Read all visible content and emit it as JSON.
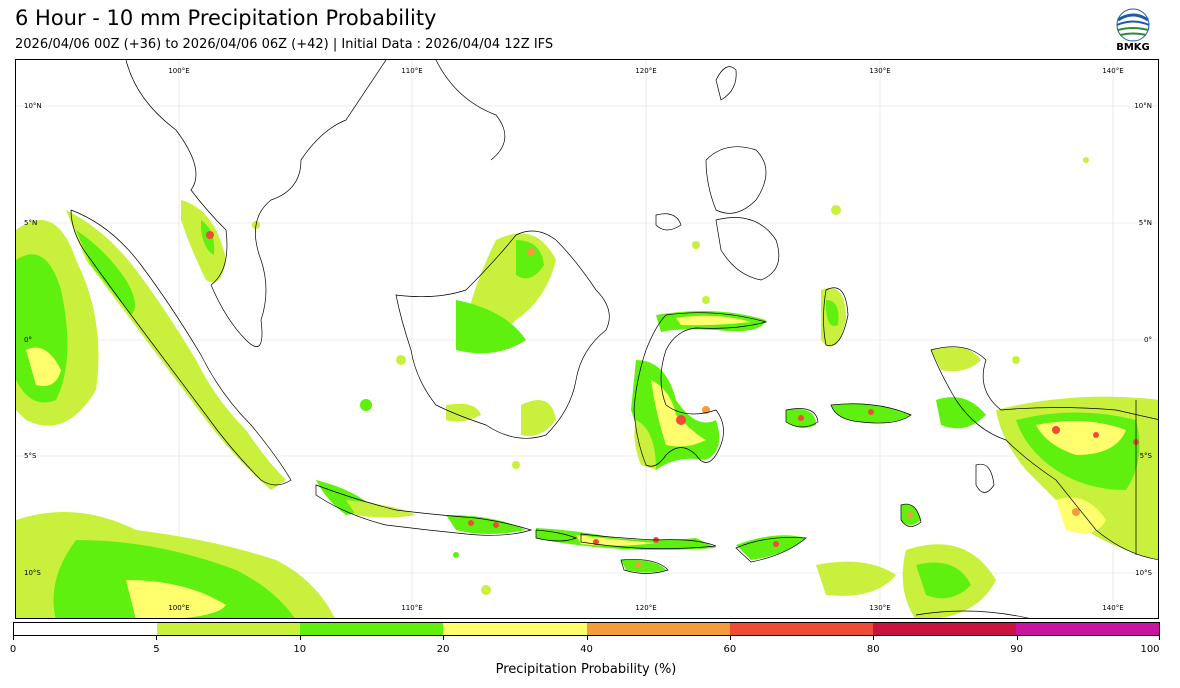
{
  "header": {
    "title": "6 Hour - 10 mm Precipitation Probability",
    "subtitle": "2026/04/06 00Z (+36) to 2026/04/06 06Z (+42) | Initial Data : 2026/04/04 12Z IFS",
    "logo_text": "BMKG"
  },
  "map": {
    "lon_labels": [
      "100°E",
      "110°E",
      "120°E",
      "130°E",
      "140°E"
    ],
    "lat_labels_left": [
      "10°N",
      "5°N",
      "0°",
      "5°S",
      "10°S"
    ],
    "lat_labels_right": [
      "10°N",
      "5°N",
      "0°",
      "5°S",
      "10°S"
    ],
    "extent": {
      "lon_min": 95,
      "lon_max": 141.5,
      "lat_min": -11.5,
      "lat_max": 12.5
    },
    "colors": {
      "land_outline": "#000000",
      "gridline": "#dddddd"
    }
  },
  "colorbar": {
    "label": "Precipitation Probability (%)",
    "ticks": [
      "0",
      "5",
      "10",
      "20",
      "40",
      "60",
      "80",
      "90",
      "100"
    ],
    "segments": [
      {
        "from": 0,
        "to": 5,
        "color": "#ffffff"
      },
      {
        "from": 5,
        "to": 10,
        "color": "#c8f03c"
      },
      {
        "from": 10,
        "to": 20,
        "color": "#5ff00f"
      },
      {
        "from": 20,
        "to": 40,
        "color": "#ffff6e"
      },
      {
        "from": 40,
        "to": 60,
        "color": "#f59b3c"
      },
      {
        "from": 60,
        "to": 80,
        "color": "#ef4b37"
      },
      {
        "from": 80,
        "to": 90,
        "color": "#c8143c"
      },
      {
        "from": 90,
        "to": 100,
        "color": "#c814a0"
      }
    ]
  }
}
